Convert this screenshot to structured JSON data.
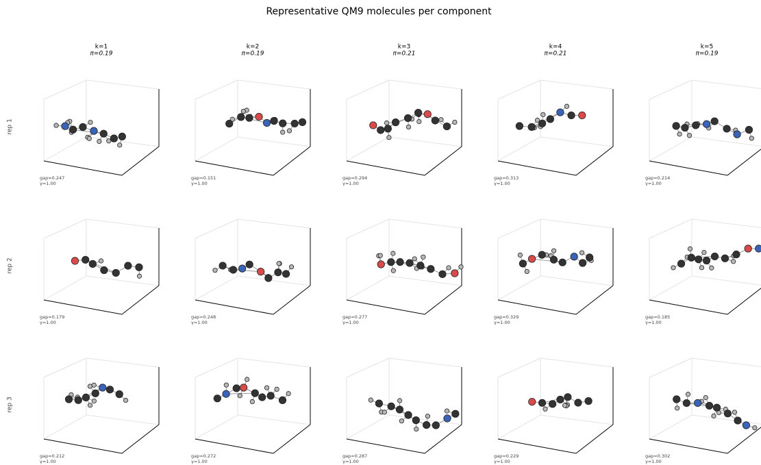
{
  "title": "Representative QM9 molecules per component",
  "columns": [
    {
      "label": "k=1",
      "weight": "π=0.19"
    },
    {
      "label": "k=2",
      "weight": "π=0.19"
    },
    {
      "label": "k=3",
      "weight": "π=0.21"
    },
    {
      "label": "k=4",
      "weight": "π=0.21"
    },
    {
      "label": "k=5",
      "weight": "π=0.19"
    }
  ],
  "rows": [
    "rep 1",
    "rep 2",
    "rep 3"
  ],
  "panels": [
    [
      {
        "gap": "gap=0.247",
        "gamma": "γ=1.00"
      },
      {
        "gap": "gap=0.151",
        "gamma": "γ=1.00"
      },
      {
        "gap": "gap=0.294",
        "gamma": "γ=1.00"
      },
      {
        "gap": "gap=0.313",
        "gamma": "γ=1.00"
      },
      {
        "gap": "gap=0.214",
        "gamma": "γ=1.00"
      }
    ],
    [
      {
        "gap": "gap=0.179",
        "gamma": "γ=1.00"
      },
      {
        "gap": "gap=0.248",
        "gamma": "γ=1.00"
      },
      {
        "gap": "gap=0.277",
        "gamma": "γ=1.00"
      },
      {
        "gap": "gap=0.329",
        "gamma": "γ=1.00"
      },
      {
        "gap": "gap=0.185",
        "gamma": "γ=1.00"
      }
    ],
    [
      {
        "gap": "gap=0.212",
        "gamma": "γ=1.00"
      },
      {
        "gap": "gap=0.272",
        "gamma": "γ=1.00"
      },
      {
        "gap": "gap=0.287",
        "gamma": "γ=1.00"
      },
      {
        "gap": "gap=0.229",
        "gamma": "γ=1.00"
      },
      {
        "gap": "gap=0.302",
        "gamma": "γ=1.00"
      }
    ]
  ]
}
